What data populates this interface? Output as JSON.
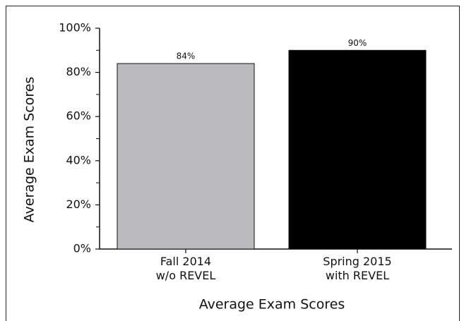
{
  "chart_data": {
    "type": "bar",
    "categories": [
      "Fall 2014\nw/o REVEL",
      "Spring 2015\nwith REVEL"
    ],
    "values": [
      84,
      90
    ],
    "value_labels": [
      "84%",
      "90%"
    ],
    "colors": [
      "#bbbbbd",
      "#000000"
    ],
    "xlabel": "Average Exam Scores",
    "ylabel": "Average Exam Scores",
    "ylim": [
      0,
      100
    ],
    "yticks": [
      {
        "value": 0,
        "label": "0%"
      },
      {
        "value": 20,
        "label": "20%"
      },
      {
        "value": 40,
        "label": "40%"
      },
      {
        "value": 60,
        "label": "60%"
      },
      {
        "value": 80,
        "label": "80%"
      },
      {
        "value": 100,
        "label": "100%"
      }
    ],
    "yminorticks": [
      10,
      30,
      50,
      70,
      90
    ],
    "grid": false
  }
}
